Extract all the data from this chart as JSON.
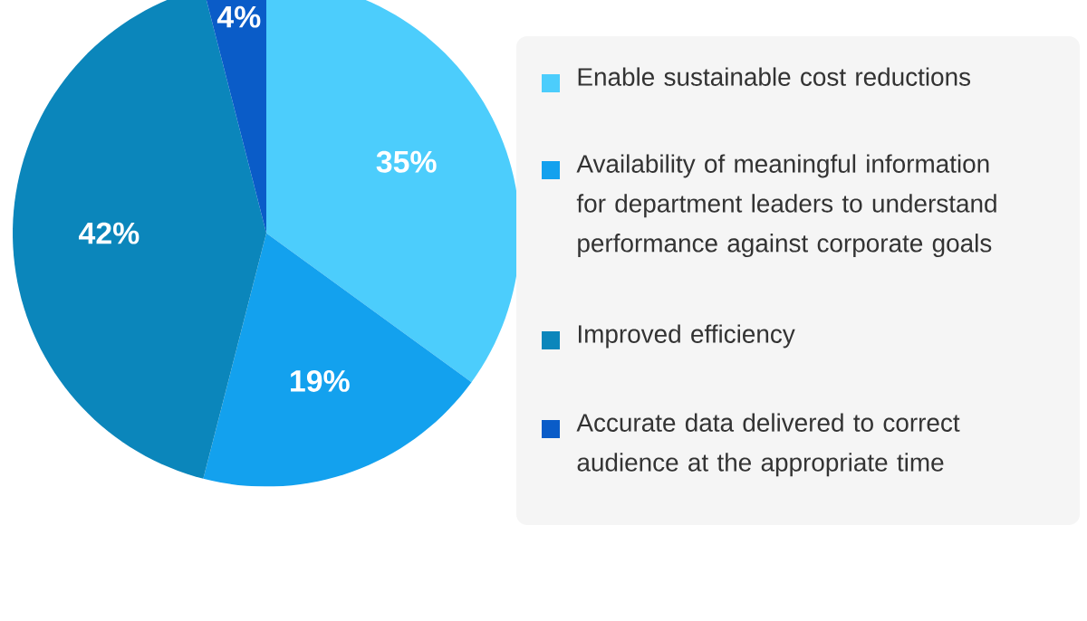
{
  "chart_data": {
    "type": "pie",
    "categories": [
      "Enable sustainable cost reductions",
      "Availability of meaningful information for department leaders to understand performance against corporate goals",
      "Improved efficiency",
      "Accurate data delivered to correct audience at the appropriate time"
    ],
    "values": [
      35,
      19,
      42,
      4
    ],
    "value_labels": [
      "35%",
      "19%",
      "42%",
      "4%"
    ],
    "colors": [
      "#4ccdfc",
      "#13a1ee",
      "#0b86bb",
      "#0a5cc8"
    ],
    "legend": "right"
  }
}
